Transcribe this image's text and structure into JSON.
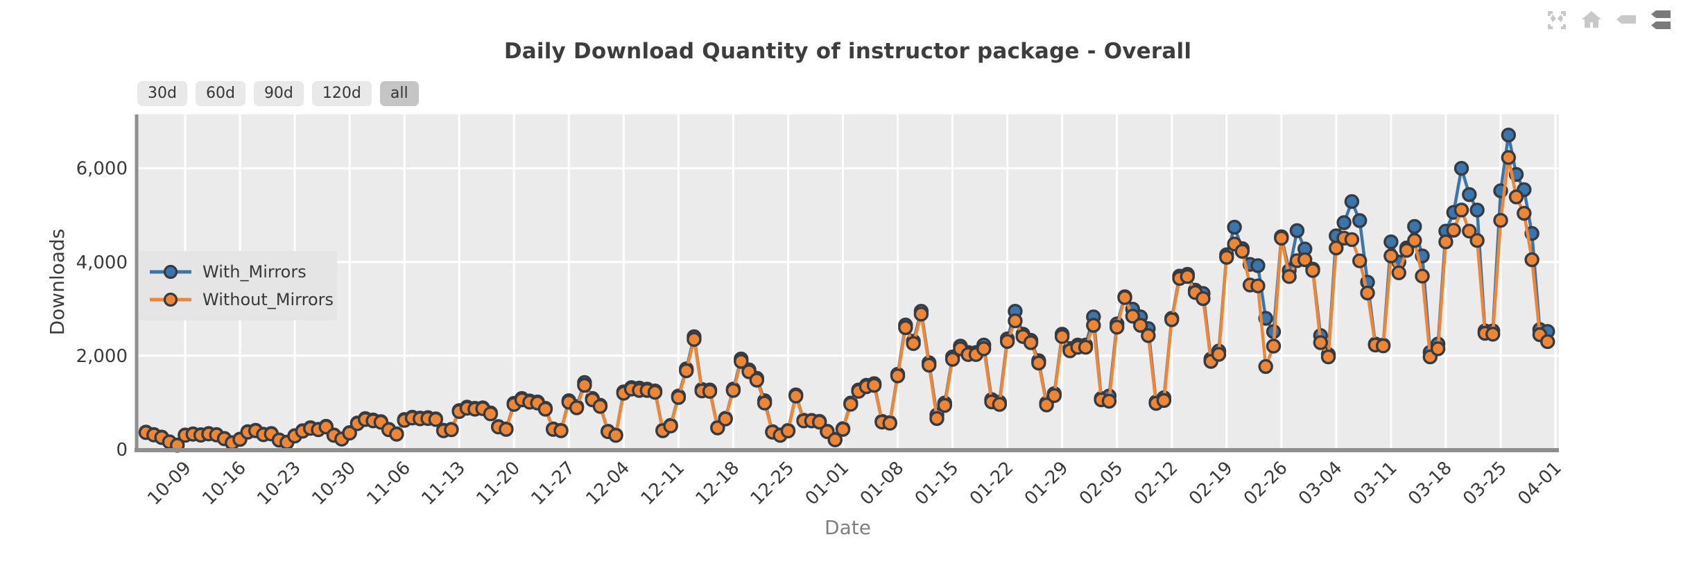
{
  "title": "Daily Download Quantity of instructor package - Overall",
  "range_buttons": [
    {
      "label": "30d",
      "active": false
    },
    {
      "label": "60d",
      "active": false
    },
    {
      "label": "90d",
      "active": false
    },
    {
      "label": "120d",
      "active": false
    },
    {
      "label": "all",
      "active": true
    }
  ],
  "modebar": [
    {
      "name": "autoscale-icon",
      "color": "#c8c8c8"
    },
    {
      "name": "home-icon",
      "color": "#c8c8c8"
    },
    {
      "name": "hover-closest-icon",
      "color": "#c8c8c8"
    },
    {
      "name": "hover-compare-icon",
      "color": "#7a7a7a"
    }
  ],
  "colors": {
    "plot_bg": "#ebebeb",
    "grid": "#ffffff",
    "spine": "#8f8f8f",
    "tick_text": "#3a3a3a",
    "xlabel_text": "#7f7f7f",
    "ylabel_text": "#3d3d3d",
    "blue": "#3a75ae",
    "orange": "#ef8636",
    "marker_edge": "#353b42"
  },
  "chart_data": {
    "type": "line",
    "title": "Daily Download Quantity of instructor package - Overall",
    "xlabel": "Date",
    "ylabel": "Downloads",
    "ylim": [
      0,
      7150
    ],
    "grid": true,
    "legend_position": "upper-left-inside",
    "y_ticks": [
      {
        "value": 0,
        "label": "0"
      },
      {
        "value": 2000,
        "label": "2,000"
      },
      {
        "value": 4000,
        "label": "4,000"
      },
      {
        "value": 6000,
        "label": "6,000"
      }
    ],
    "x_start_date": "10-04",
    "x_tick_start_index": 5,
    "x_tick_step": 7,
    "x_tick_labels": [
      "10-09",
      "10-16",
      "10-23",
      "10-30",
      "11-06",
      "11-13",
      "11-20",
      "11-27",
      "12-04",
      "12-11",
      "12-18",
      "12-25",
      "01-01",
      "01-08",
      "01-15",
      "01-22",
      "01-29",
      "02-05",
      "02-12",
      "02-19",
      "02-26",
      "03-04",
      "03-11",
      "03-18",
      "03-25",
      "04-01"
    ],
    "series": [
      {
        "name": "With_Mirrors",
        "color": "#3a75ae",
        "values": [
          370,
          320,
          265,
          165,
          95,
          310,
          335,
          315,
          340,
          320,
          235,
          145,
          220,
          380,
          410,
          325,
          340,
          205,
          155,
          295,
          400,
          465,
          430,
          495,
          310,
          225,
          360,
          565,
          660,
          630,
          595,
          430,
          335,
          640,
          690,
          670,
          680,
          655,
          410,
          430,
          830,
          905,
          880,
          890,
          780,
          490,
          440,
          985,
          1090,
          1035,
          1015,
          880,
          440,
          410,
          1040,
          915,
          1430,
          1090,
          945,
          390,
          310,
          1230,
          1320,
          1310,
          1290,
          1250,
          410,
          515,
          1140,
          1720,
          2405,
          1280,
          1270,
          470,
          665,
          1290,
          1930,
          1700,
          1520,
          1040,
          380,
          310,
          405,
          1165,
          625,
          620,
          600,
          390,
          215,
          445,
          990,
          1270,
          1370,
          1405,
          600,
          575,
          1605,
          2655,
          2310,
          2950,
          1850,
          735,
          990,
          1975,
          2205,
          2070,
          2070,
          2230,
          1065,
          1010,
          2360,
          2950,
          2460,
          2330,
          1895,
          990,
          1190,
          2460,
          2155,
          2230,
          2230,
          2830,
          1090,
          1140,
          2680,
          3260,
          2995,
          2830,
          2580,
          1015,
          1105,
          2800,
          3700,
          3740,
          3400,
          3330,
          1930,
          2100,
          4155,
          4745,
          4285,
          3950,
          3925,
          2800,
          2515,
          4540,
          3820,
          4670,
          4280,
          3850,
          2430,
          2025,
          4560,
          4840,
          5290,
          4885,
          3570,
          2250,
          2230,
          4430,
          4000,
          4300,
          4760,
          4130,
          2075,
          2250,
          4660,
          5060,
          6000,
          5440,
          5110,
          2530,
          2530,
          5520,
          6710,
          5870,
          5545,
          4610,
          2560,
          2520
        ]
      },
      {
        "name": "Without_Mirrors",
        "color": "#ef8636",
        "values": [
          360,
          310,
          255,
          160,
          90,
          300,
          325,
          305,
          330,
          310,
          230,
          140,
          215,
          370,
          400,
          315,
          330,
          200,
          150,
          285,
          390,
          450,
          420,
          480,
          300,
          220,
          350,
          550,
          640,
          610,
          580,
          420,
          325,
          620,
          670,
          655,
          660,
          640,
          400,
          420,
          810,
          880,
          860,
          870,
          760,
          480,
          430,
          960,
          1060,
          1010,
          990,
          860,
          430,
          400,
          1010,
          890,
          1370,
          1060,
          920,
          380,
          300,
          1200,
          1290,
          1260,
          1260,
          1220,
          400,
          500,
          1110,
          1680,
          2350,
          1250,
          1240,
          460,
          650,
          1260,
          1880,
          1660,
          1480,
          990,
          370,
          300,
          395,
          1140,
          610,
          610,
          585,
          380,
          205,
          430,
          965,
          1240,
          1340,
          1370,
          585,
          560,
          1570,
          2600,
          2260,
          2890,
          1800,
          660,
          940,
          1925,
          2150,
          2025,
          2025,
          2150,
          1015,
          960,
          2305,
          2745,
          2410,
          2280,
          1845,
          950,
          1150,
          2410,
          2105,
          2180,
          2180,
          2650,
          1060,
          1030,
          2610,
          3240,
          2845,
          2650,
          2430,
          985,
          1045,
          2770,
          3650,
          3690,
          3350,
          3220,
          1880,
          2030,
          4100,
          4385,
          4230,
          3510,
          3490,
          1770,
          2205,
          4510,
          3690,
          4030,
          4050,
          3820,
          2280,
          1975,
          4300,
          4510,
          4480,
          4025,
          3340,
          2230,
          2210,
          4130,
          3770,
          4250,
          4460,
          3700,
          1975,
          2150,
          4430,
          4680,
          5110,
          4660,
          4460,
          2480,
          2460,
          4890,
          6230,
          5390,
          5040,
          4050,
          2450,
          2300
        ]
      }
    ]
  }
}
